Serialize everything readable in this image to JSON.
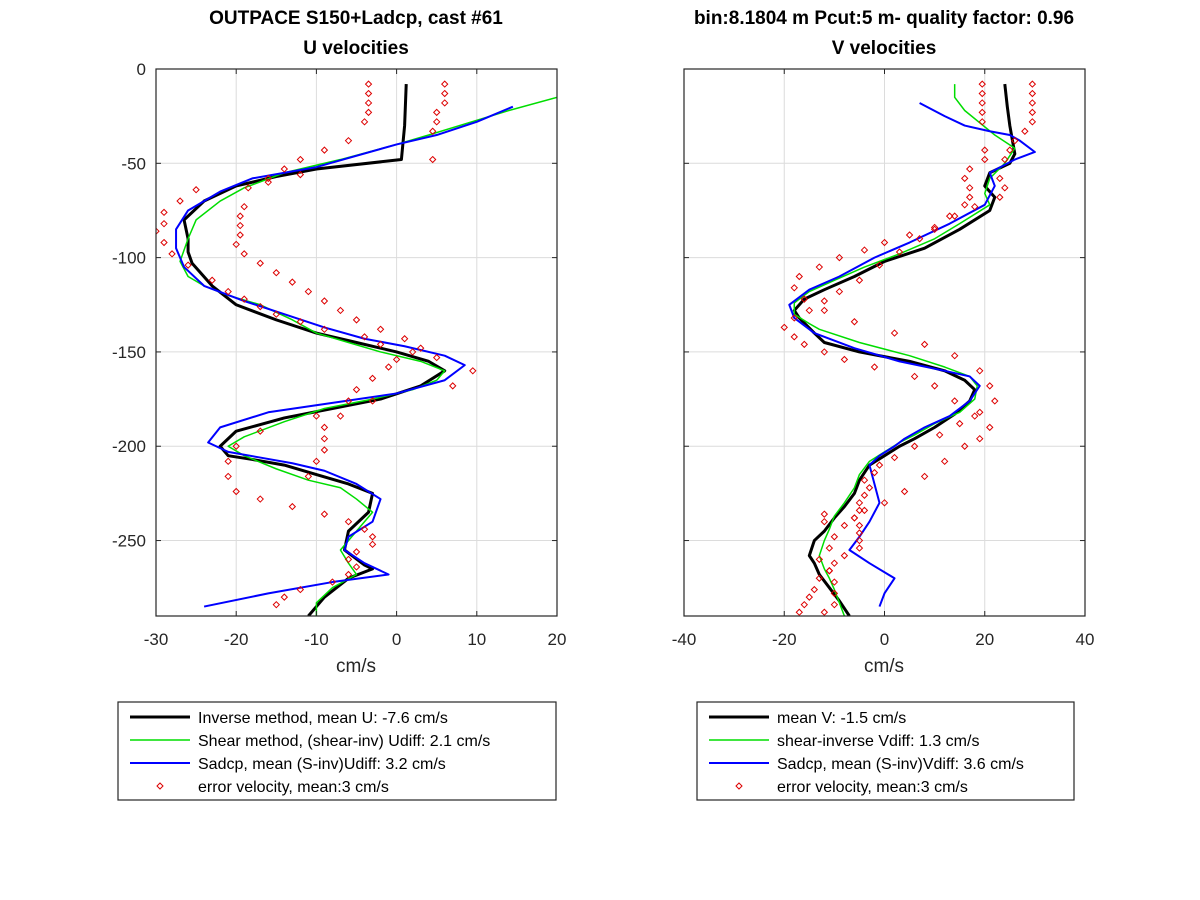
{
  "chart_data": [
    {
      "type": "line",
      "title": "OUTPACE S150+Ladcp, cast #61",
      "subtitle": "U velocities",
      "xlabel": "cm/s",
      "ylabel": "",
      "xlim": [
        -30,
        20
      ],
      "ylim": [
        -290,
        0
      ],
      "xticks": [
        -30,
        -20,
        -10,
        0,
        10,
        20
      ],
      "yticks": [
        0,
        -50,
        -100,
        -150,
        -200,
        -250
      ],
      "grid": true,
      "legend": {
        "placement": "below",
        "entries": [
          "Inverse method, mean U:  -7.6 cm/s",
          "Shear method, (shear-inv)  Udiff:  2.1 cm/s",
          "Sadcp, mean (S-inv)Udiff: 3.2 cm/s",
          "error velocity, mean:3 cm/s"
        ]
      },
      "series": [
        {
          "name": "Inverse method",
          "color": "#000000",
          "width": 3,
          "style": "line",
          "x": [
            1.2,
            1.0,
            0.6,
            -10,
            -15,
            -20,
            -24,
            -26.5,
            -26,
            -26,
            -25.5,
            -23,
            -20,
            -15,
            -10,
            -5,
            0,
            4,
            6,
            3,
            -2,
            -8,
            -14,
            -20,
            -22,
            -21,
            -18,
            -14,
            -10,
            -6,
            -3,
            -3.5,
            -6,
            -6.5,
            -4,
            -3,
            -6,
            -9,
            -10,
            -11
          ],
          "y": [
            -8,
            -30,
            -48,
            -53,
            -57,
            -62,
            -70,
            -80,
            -90,
            -97,
            -103,
            -115,
            -125,
            -133,
            -140,
            -145,
            -150,
            -155,
            -160,
            -168,
            -175,
            -180,
            -185,
            -192,
            -200,
            -205,
            -207,
            -210,
            -215,
            -220,
            -225,
            -235,
            -245,
            -255,
            -263,
            -265,
            -270,
            -280,
            -285,
            -290
          ]
        },
        {
          "name": "Shear method",
          "color": "#00dd00",
          "width": 1.5,
          "style": "line",
          "x": [
            20,
            14,
            4,
            0,
            -7,
            -14,
            -19,
            -22,
            -25,
            -26,
            -27,
            -26,
            -24,
            -21,
            -17,
            -13,
            -10,
            -6,
            -2,
            3,
            6,
            5,
            2,
            -3,
            -9,
            -14,
            -19,
            -21,
            -19,
            -15,
            -11,
            -7,
            -5,
            -3,
            -5,
            -7,
            -6,
            -5,
            -8,
            -10,
            -10
          ],
          "y": [
            -15,
            -22,
            -35,
            -40,
            -48,
            -55,
            -63,
            -70,
            -80,
            -90,
            -102,
            -110,
            -115,
            -120,
            -125,
            -133,
            -140,
            -145,
            -150,
            -155,
            -160,
            -165,
            -170,
            -175,
            -180,
            -187,
            -195,
            -200,
            -205,
            -212,
            -218,
            -222,
            -228,
            -235,
            -245,
            -255,
            -262,
            -268,
            -275,
            -283,
            -290
          ]
        },
        {
          "name": "Sadcp",
          "color": "#0000ff",
          "width": 2,
          "style": "line",
          "x": [
            14.5,
            10,
            5,
            0,
            -10,
            -18,
            -22,
            -26,
            -27.5,
            -27.5,
            -26.5,
            -24,
            -19,
            -14,
            -9,
            -4,
            1,
            6,
            8.5,
            6,
            0,
            -8,
            -16,
            -22,
            -23.5,
            -21,
            -17,
            -13,
            -9,
            -5,
            -2,
            -3,
            -6,
            -6.5,
            -4,
            -1,
            -8,
            -16,
            -24
          ],
          "y": [
            -20,
            -28,
            -35,
            -40,
            -52,
            -58,
            -65,
            -75,
            -85,
            -95,
            -105,
            -115,
            -123,
            -130,
            -137,
            -143,
            -147,
            -152,
            -157,
            -165,
            -172,
            -177,
            -182,
            -190,
            -198,
            -203,
            -206,
            -209,
            -213,
            -220,
            -228,
            -240,
            -248,
            -255,
            -262,
            -268,
            -272,
            -278,
            -285
          ]
        },
        {
          "name": "error velocity",
          "color": "#dd0000",
          "width": 1,
          "style": "markers",
          "x": [
            -3.5,
            -3.5,
            -3.5,
            -3.5,
            -4,
            -6,
            -9,
            -12,
            -14,
            -16,
            -18.5,
            -19,
            -19.5,
            -19.5,
            -19.5,
            -20,
            -19,
            -17,
            -15,
            -13,
            -11,
            -9,
            -7,
            -5,
            -2,
            1,
            3,
            5,
            9.5,
            7,
            -3,
            -10,
            -17,
            -20,
            -21,
            -21,
            -20,
            -17,
            -13,
            -9,
            -6,
            -4,
            -3,
            -3,
            -5,
            -6,
            -5,
            -6,
            -8,
            -12,
            -14,
            -15,
            6,
            6,
            6,
            5,
            5,
            4.5,
            4.5,
            -12,
            -16,
            -25,
            -27,
            -29,
            -29,
            -30,
            -29,
            -28,
            -26,
            -23,
            -21,
            -19,
            -17,
            -15,
            -12,
            -9,
            -4,
            -2,
            2,
            0,
            -1,
            -3,
            -5,
            -6,
            -7,
            -9,
            -9,
            -9,
            -10,
            -11
          ],
          "y": [
            -8,
            -13,
            -18,
            -23,
            -28,
            -38,
            -43,
            -48,
            -53,
            -58,
            -63,
            -73,
            -78,
            -83,
            -88,
            -93,
            -98,
            -103,
            -108,
            -113,
            -118,
            -123,
            -128,
            -133,
            -138,
            -143,
            -148,
            -153,
            -160,
            -168,
            -176,
            -184,
            -192,
            -200,
            -208,
            -216,
            -224,
            -228,
            -232,
            -236,
            -240,
            -244,
            -248,
            -252,
            -256,
            -260,
            -264,
            -268,
            -272,
            -276,
            -280,
            -284,
            -8,
            -13,
            -18,
            -23,
            -28,
            -33,
            -48,
            -56,
            -60,
            -64,
            -70,
            -76,
            -82,
            -86,
            -92,
            -98,
            -104,
            -112,
            -118,
            -122,
            -126,
            -130,
            -134,
            -138,
            -142,
            -146,
            -150,
            -154,
            -158,
            -164,
            -170,
            -176,
            -184,
            -190,
            -196,
            -202,
            -208,
            -216
          ]
        }
      ]
    },
    {
      "type": "line",
      "title": "bin:8.1804 m  Pcut:5 m- quality factor:  0.96",
      "subtitle": "V velocities",
      "xlabel": "cm/s",
      "ylabel": "",
      "xlim": [
        -40,
        40
      ],
      "ylim": [
        -290,
        0
      ],
      "xticks": [
        -40,
        -20,
        0,
        20,
        40
      ],
      "yticks": [
        0,
        -50,
        -100,
        -150,
        -200,
        -250
      ],
      "grid": true,
      "legend": {
        "placement": "below",
        "entries": [
          "mean V:  -1.5 cm/s",
          "shear-inverse Vdiff:  1.3 cm/s",
          "Sadcp, mean (S-inv)Vdiff: 3.6 cm/s",
          "error velocity, mean:3 cm/s"
        ]
      },
      "series": [
        {
          "name": "mean V",
          "color": "#000000",
          "width": 3,
          "style": "line",
          "x": [
            24,
            24.5,
            25,
            26,
            25,
            21,
            20,
            22,
            21,
            15,
            8,
            0,
            -6,
            -12,
            -16,
            -18,
            -17,
            -14,
            -12,
            -5,
            5,
            12,
            16,
            18,
            17,
            14,
            10,
            6,
            3,
            0,
            -3,
            -5,
            -6,
            -8,
            -10,
            -12,
            -14,
            -15,
            -14,
            -13,
            -11,
            -9,
            -7
          ],
          "y": [
            -8,
            -20,
            -30,
            -45,
            -50,
            -55,
            -62,
            -68,
            -75,
            -85,
            -95,
            -102,
            -110,
            -117,
            -122,
            -128,
            -132,
            -140,
            -145,
            -150,
            -155,
            -160,
            -165,
            -170,
            -176,
            -183,
            -190,
            -196,
            -200,
            -205,
            -210,
            -218,
            -225,
            -232,
            -238,
            -245,
            -250,
            -258,
            -262,
            -268,
            -275,
            -282,
            -290
          ]
        },
        {
          "name": "shear-inverse Vdiff",
          "color": "#00dd00",
          "width": 1.5,
          "style": "line",
          "x": [
            14,
            14,
            16,
            22,
            26,
            24,
            21,
            20,
            21,
            15,
            10,
            3,
            -4,
            -10,
            -15,
            -18,
            -18,
            -15,
            -13,
            -5,
            5,
            12,
            17,
            18.5,
            18,
            15,
            10,
            6,
            3,
            0,
            -3,
            -5,
            -6,
            -8,
            -10,
            -11,
            -12,
            -13,
            -12,
            -11,
            -10,
            -9,
            -8
          ],
          "y": [
            -8,
            -15,
            -22,
            -35,
            -42,
            -50,
            -58,
            -66,
            -72,
            -82,
            -90,
            -98,
            -105,
            -112,
            -118,
            -124,
            -130,
            -135,
            -138,
            -145,
            -152,
            -158,
            -163,
            -168,
            -175,
            -182,
            -188,
            -194,
            -198,
            -203,
            -208,
            -215,
            -222,
            -230,
            -237,
            -244,
            -250,
            -258,
            -265,
            -270,
            -276,
            -283,
            -290
          ]
        },
        {
          "name": "Sadcp",
          "color": "#0000ff",
          "width": 2,
          "style": "line",
          "x": [
            7,
            12,
            16,
            21,
            25,
            27,
            30,
            26,
            21,
            22,
            20,
            13,
            5,
            -2,
            -9,
            -15,
            -19,
            -18,
            -14,
            -6,
            3,
            12,
            17,
            19,
            17,
            13,
            8,
            4,
            2,
            -1,
            -3,
            -2,
            -1,
            -3,
            -5,
            -7,
            -3,
            2,
            0,
            -1
          ],
          "y": [
            -18,
            -25,
            -30,
            -33,
            -35,
            -38,
            -44,
            -48,
            -55,
            -62,
            -72,
            -82,
            -92,
            -100,
            -110,
            -117,
            -125,
            -132,
            -140,
            -148,
            -155,
            -160,
            -163,
            -168,
            -176,
            -184,
            -190,
            -196,
            -200,
            -205,
            -210,
            -220,
            -230,
            -240,
            -248,
            -255,
            -262,
            -270,
            -278,
            -285
          ]
        },
        {
          "name": "error velocity",
          "color": "#dd0000",
          "width": 1,
          "style": "markers",
          "x": [
            19.5,
            19.5,
            19.5,
            19.5,
            19.5,
            20,
            20,
            17,
            16,
            17,
            17,
            16,
            13,
            10,
            7,
            3,
            -1,
            -5,
            -9,
            -12,
            -15,
            -18,
            -20,
            -18,
            -16,
            -12,
            -8,
            -2,
            6,
            10,
            14,
            18,
            21,
            19,
            16,
            12,
            8,
            4,
            0,
            -4,
            -6,
            -5,
            -5,
            -5,
            -5,
            -8,
            -10,
            -11,
            -13,
            -14,
            -15,
            -16,
            -17,
            -12,
            -12,
            29.5,
            29.5,
            29.5,
            29.5,
            29.5,
            28,
            26,
            25,
            24,
            23,
            24,
            23,
            18,
            14,
            10,
            5,
            0,
            -4,
            -9,
            -13,
            -17,
            -18,
            -16,
            -12,
            -6,
            2,
            8,
            14,
            19,
            21,
            22,
            19,
            15,
            11,
            6,
            2,
            -1,
            -2,
            -4,
            -3,
            -4,
            -5,
            -5,
            -6,
            -8,
            -10,
            -11,
            -13,
            -11,
            -10,
            -10,
            -10,
            -12
          ],
          "y": [
            -8,
            -13,
            -18,
            -23,
            -28,
            -43,
            -48,
            -53,
            -58,
            -63,
            -68,
            -72,
            -78,
            -85,
            -90,
            -97,
            -104,
            -112,
            -118,
            -123,
            -128,
            -132,
            -137,
            -142,
            -146,
            -150,
            -154,
            -158,
            -163,
            -168,
            -176,
            -184,
            -190,
            -196,
            -200,
            -208,
            -216,
            -224,
            -230,
            -234,
            -238,
            -242,
            -246,
            -250,
            -254,
            -258,
            -262,
            -266,
            -270,
            -276,
            -280,
            -284,
            -288,
            -236,
            -240,
            -8,
            -13,
            -18,
            -23,
            -28,
            -33,
            -38,
            -43,
            -48,
            -58,
            -63,
            -68,
            -73,
            -78,
            -84,
            -88,
            -92,
            -96,
            -100,
            -105,
            -110,
            -116,
            -122,
            -128,
            -134,
            -140,
            -146,
            -152,
            -160,
            -168,
            -176,
            -182,
            -188,
            -194,
            -200,
            -206,
            -210,
            -214,
            -218,
            -222,
            -226,
            -230,
            -234,
            -238,
            -242,
            -248,
            -254,
            -260,
            -266,
            -272,
            -278,
            -284,
            -288
          ]
        }
      ]
    }
  ]
}
